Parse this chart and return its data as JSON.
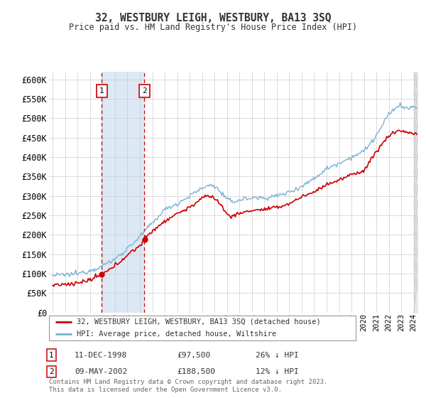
{
  "title": "32, WESTBURY LEIGH, WESTBURY, BA13 3SQ",
  "subtitle": "Price paid vs. HM Land Registry's House Price Index (HPI)",
  "legend_label_red": "32, WESTBURY LEIGH, WESTBURY, BA13 3SQ (detached house)",
  "legend_label_blue": "HPI: Average price, detached house, Wiltshire",
  "purchase1_date": "11-DEC-1998",
  "purchase1_price": 97500,
  "purchase1_note": "26% ↓ HPI",
  "purchase2_date": "09-MAY-2002",
  "purchase2_price": 188500,
  "purchase2_note": "12% ↓ HPI",
  "purchase1_x": 1998.94,
  "purchase2_x": 2002.36,
  "footer": "Contains HM Land Registry data © Crown copyright and database right 2023.\nThis data is licensed under the Open Government Licence v3.0.",
  "y_ticks": [
    0,
    50000,
    100000,
    150000,
    200000,
    250000,
    300000,
    350000,
    400000,
    450000,
    500000,
    550000,
    600000
  ],
  "y_labels": [
    "£0",
    "£50K",
    "£100K",
    "£150K",
    "£200K",
    "£250K",
    "£300K",
    "£350K",
    "£400K",
    "£450K",
    "£500K",
    "£550K",
    "£600K"
  ],
  "xlim": [
    1994.7,
    2024.3
  ],
  "ylim": [
    0,
    620000
  ],
  "red_color": "#cc0000",
  "blue_color": "#7ab0d4",
  "shade_color": "#dce9f5",
  "grid_color": "#cccccc",
  "bg_color": "#ffffff",
  "hatch_color": "#cccccc"
}
